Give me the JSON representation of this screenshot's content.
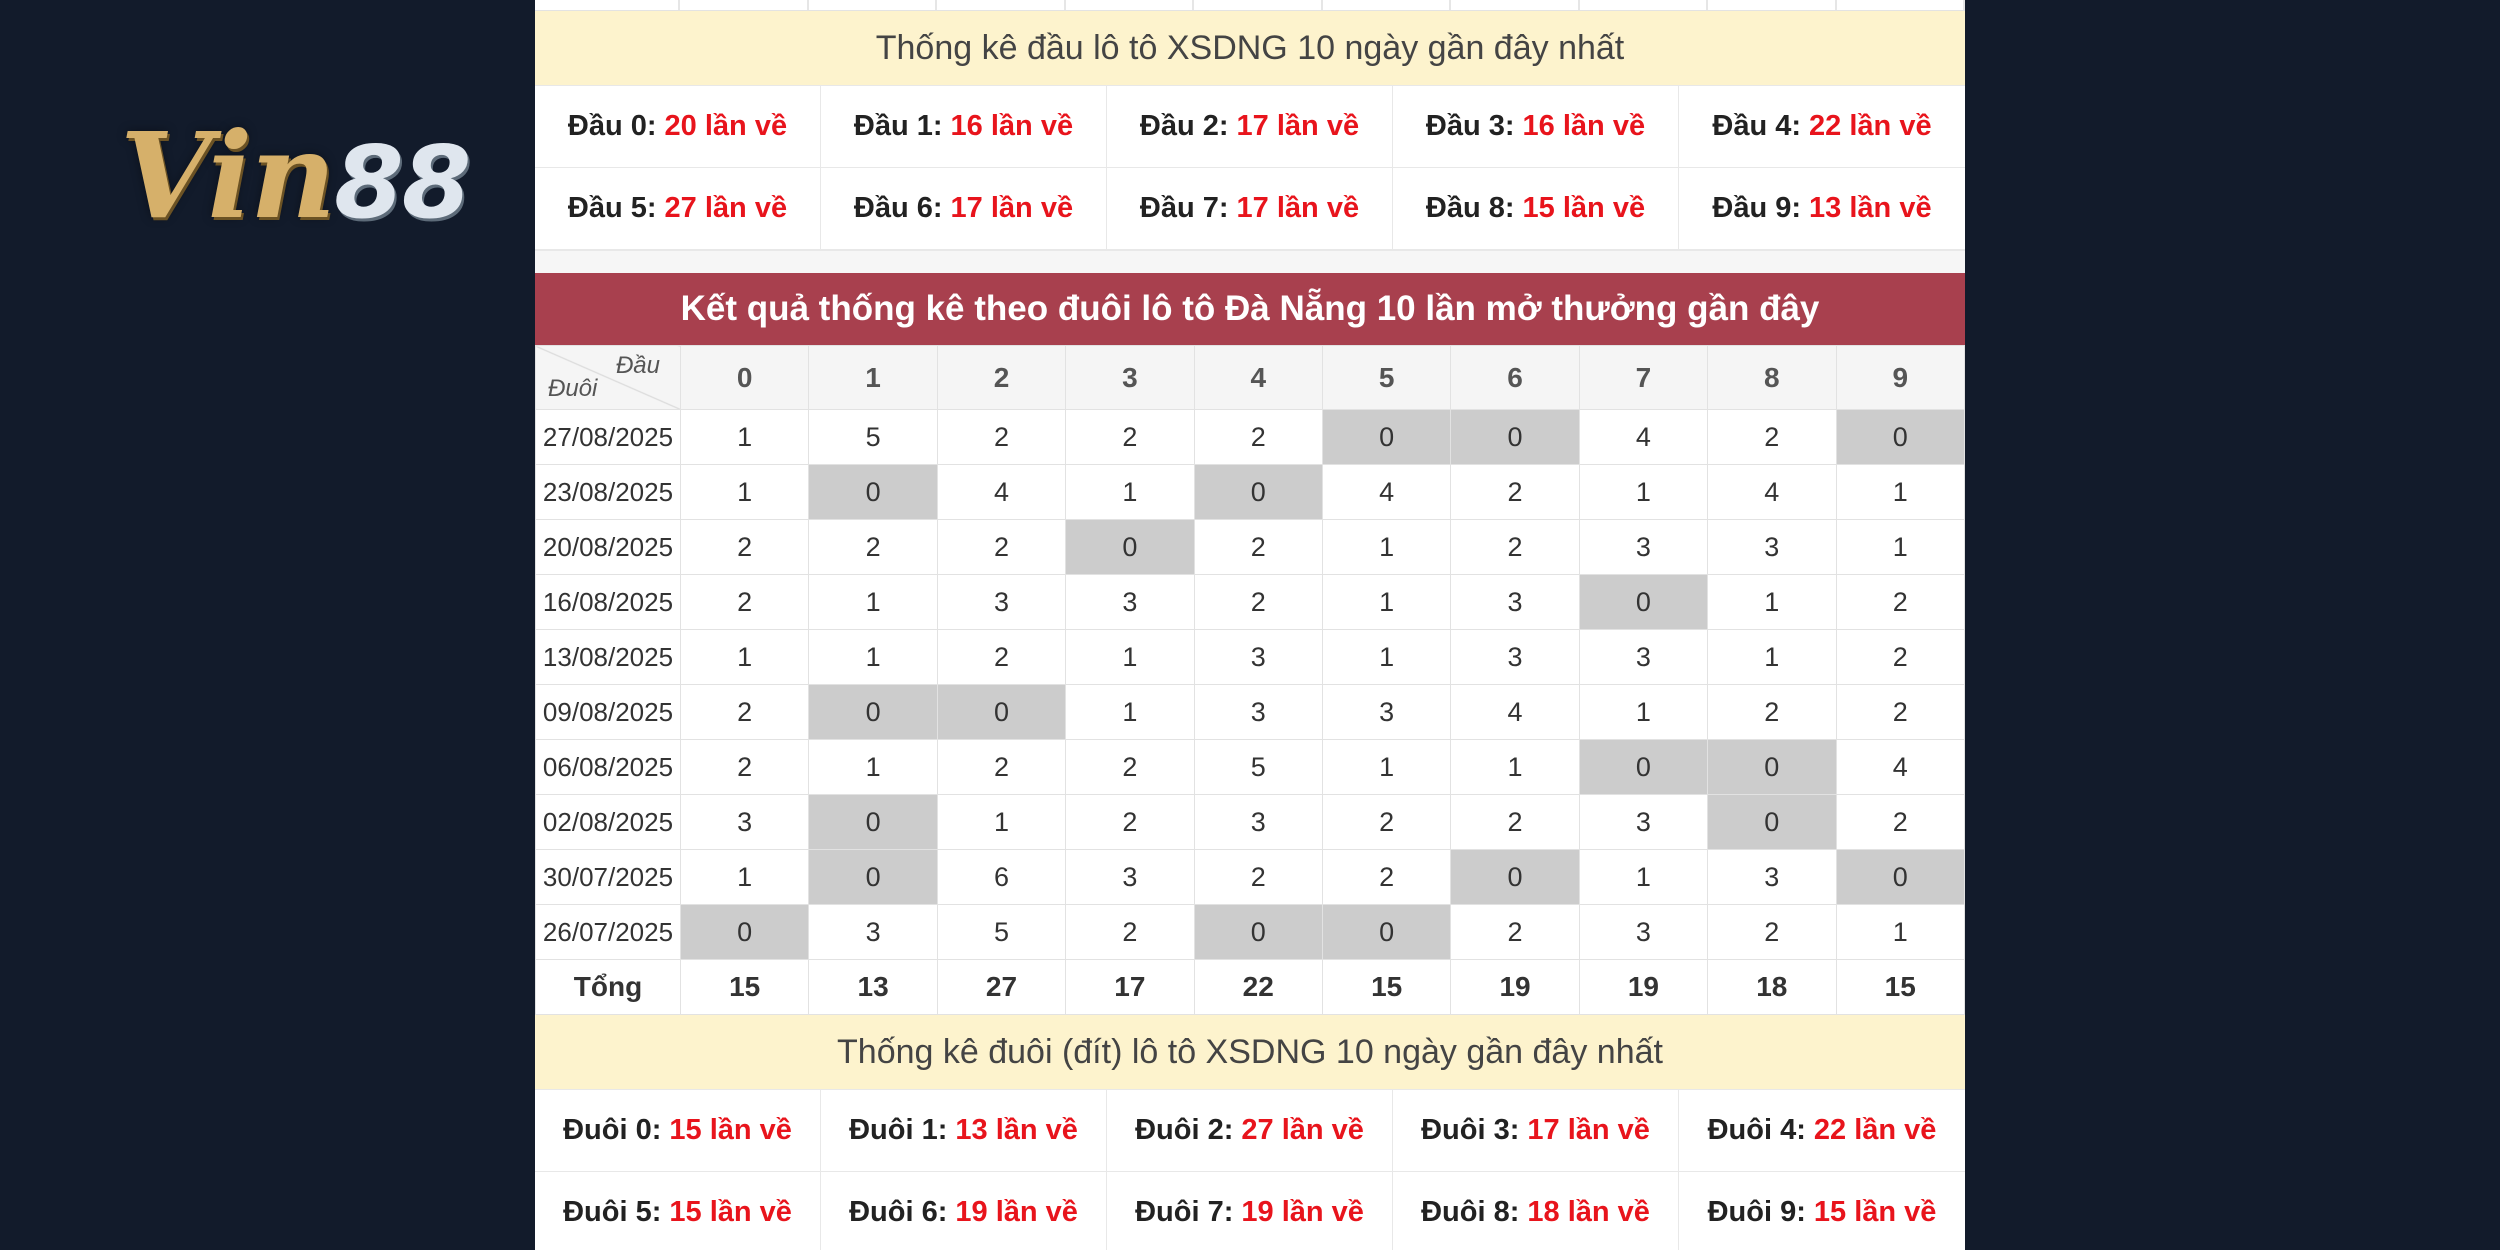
{
  "brand": {
    "logo_text": "Vin",
    "logo_num": "88"
  },
  "head_stats": {
    "title": "Thống kê đầu lô tô XSDNG 10 ngày gần đây nhất",
    "items": [
      {
        "label": "Đầu 0:",
        "value": "20 lần về"
      },
      {
        "label": "Đầu 1:",
        "value": "16 lần về"
      },
      {
        "label": "Đầu 2:",
        "value": "17 lần về"
      },
      {
        "label": "Đầu 3:",
        "value": "16 lần về"
      },
      {
        "label": "Đầu 4:",
        "value": "22 lần về"
      },
      {
        "label": "Đầu 5:",
        "value": "27 lần về"
      },
      {
        "label": "Đầu 6:",
        "value": "17 lần về"
      },
      {
        "label": "Đầu 7:",
        "value": "17 lần về"
      },
      {
        "label": "Đầu 8:",
        "value": "15 lần về"
      },
      {
        "label": "Đầu 9:",
        "value": "13 lần về"
      }
    ]
  },
  "tail_table": {
    "title": "Kết quả thống kê theo đuôi lô tô Đà Nẵng 10 lần mở thưởng gần đây",
    "corner_top": "Đầu",
    "corner_bottom": "Đuôi",
    "columns": [
      "0",
      "1",
      "2",
      "3",
      "4",
      "5",
      "6",
      "7",
      "8",
      "9"
    ],
    "rows": [
      {
        "date": "27/08/2025",
        "values": [
          "1",
          "5",
          "2",
          "2",
          "2",
          "0",
          "0",
          "4",
          "2",
          "0"
        ]
      },
      {
        "date": "23/08/2025",
        "values": [
          "1",
          "0",
          "4",
          "1",
          "0",
          "4",
          "2",
          "1",
          "4",
          "1"
        ]
      },
      {
        "date": "20/08/2025",
        "values": [
          "2",
          "2",
          "2",
          "0",
          "2",
          "1",
          "2",
          "3",
          "3",
          "1"
        ]
      },
      {
        "date": "16/08/2025",
        "values": [
          "2",
          "1",
          "3",
          "3",
          "2",
          "1",
          "3",
          "0",
          "1",
          "2"
        ]
      },
      {
        "date": "13/08/2025",
        "values": [
          "1",
          "1",
          "2",
          "1",
          "3",
          "1",
          "3",
          "3",
          "1",
          "2"
        ]
      },
      {
        "date": "09/08/2025",
        "values": [
          "2",
          "0",
          "0",
          "1",
          "3",
          "3",
          "4",
          "1",
          "2",
          "2"
        ]
      },
      {
        "date": "06/08/2025",
        "values": [
          "2",
          "1",
          "2",
          "2",
          "5",
          "1",
          "1",
          "0",
          "0",
          "4"
        ]
      },
      {
        "date": "02/08/2025",
        "values": [
          "3",
          "0",
          "1",
          "2",
          "3",
          "2",
          "2",
          "3",
          "0",
          "2"
        ]
      },
      {
        "date": "30/07/2025",
        "values": [
          "1",
          "0",
          "6",
          "3",
          "2",
          "2",
          "0",
          "1",
          "3",
          "0"
        ]
      },
      {
        "date": "26/07/2025",
        "values": [
          "0",
          "3",
          "5",
          "2",
          "0",
          "0",
          "2",
          "3",
          "2",
          "1"
        ]
      }
    ],
    "total_label": "Tổng",
    "totals": [
      "15",
      "13",
      "27",
      "17",
      "22",
      "15",
      "19",
      "19",
      "18",
      "15"
    ]
  },
  "tail_stats": {
    "title": "Thống kê đuôi (đít) lô tô XSDNG 10 ngày gần đây nhất",
    "items": [
      {
        "label": "Đuôi 0:",
        "value": "15 lần về"
      },
      {
        "label": "Đuôi 1:",
        "value": "13 lần về"
      },
      {
        "label": "Đuôi 2:",
        "value": "27 lần về"
      },
      {
        "label": "Đuôi 3:",
        "value": "17 lần về"
      },
      {
        "label": "Đuôi 4:",
        "value": "22 lần về"
      },
      {
        "label": "Đuôi 5:",
        "value": "15 lần về"
      },
      {
        "label": "Đuôi 6:",
        "value": "19 lần về"
      },
      {
        "label": "Đuôi 7:",
        "value": "19 lần về"
      },
      {
        "label": "Đuôi 8:",
        "value": "18 lần về"
      },
      {
        "label": "Đuôi 9:",
        "value": "15 lần về"
      }
    ]
  },
  "colors": {
    "background": "#121b2b",
    "accent_red": "#e8141c",
    "header_red": "#a8404e",
    "highlight_gray": "#cccccc",
    "header_yellow": "#fdf3cd"
  }
}
